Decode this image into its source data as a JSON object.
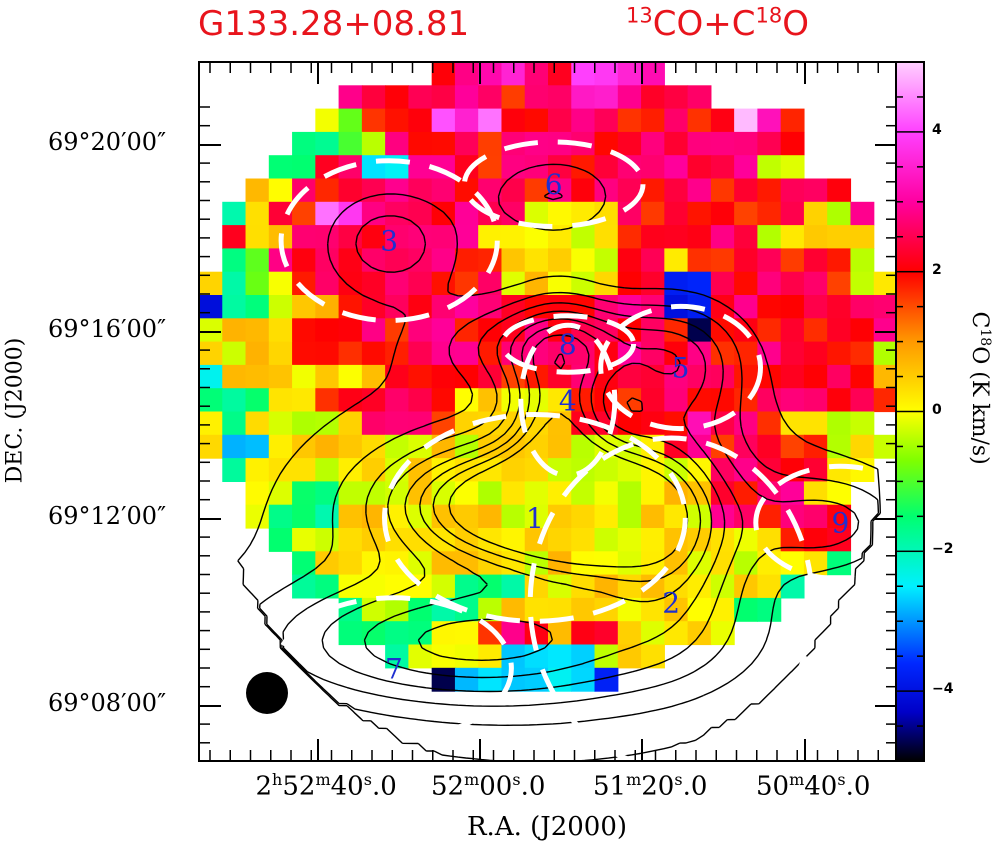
{
  "header": {
    "source_name": "G133.28+08.81",
    "iso1_mass": "13",
    "iso1_rest": "CO+C",
    "iso2_mass": "18",
    "iso2_rest": "O"
  },
  "chart_data": {
    "type": "heatmap",
    "title": "G133.28+08.81",
    "xlabel": "R.A. (J2000)",
    "ylabel": "DEC. (J2000)",
    "colorbar_label": {
      "mol": "C",
      "mass": "18",
      "rest": "O (K km/s)"
    },
    "colorbar_range": [
      -5,
      5
    ],
    "colorbar_ticks": [
      {
        "value": 4,
        "label": "4"
      },
      {
        "value": 2,
        "label": "2"
      },
      {
        "value": 0,
        "label": "0"
      },
      {
        "value": -2,
        "label": "−2"
      },
      {
        "value": -4,
        "label": "−4"
      }
    ],
    "colormap": [
      [
        -5,
        "#000000"
      ],
      [
        -4.3,
        "#0000c8"
      ],
      [
        -3.6,
        "#0028ff"
      ],
      [
        -2.5,
        "#00f0ff"
      ],
      [
        -1.5,
        "#00ff70"
      ],
      [
        -0.7,
        "#7fff00"
      ],
      [
        0,
        "#ffff00"
      ],
      [
        1,
        "#ff9900"
      ],
      [
        2,
        "#ff0000"
      ],
      [
        3,
        "#ff00a0"
      ],
      [
        4,
        "#ff40ff"
      ],
      [
        5,
        "#ffd0ff"
      ]
    ],
    "x_ticks": [
      {
        "h": "2",
        "m": "52",
        "s": "40",
        "frac": "0"
      },
      {
        "h": "",
        "m": "52",
        "s": "00",
        "frac": "0"
      },
      {
        "h": "",
        "m": "51",
        "s": "20",
        "frac": "0"
      },
      {
        "h": "",
        "m": "50",
        "s": "40",
        "frac": "0"
      }
    ],
    "y_ticks": [
      "69°20′00″",
      "69°16′00″",
      "69°12′00″",
      "69°08′00″"
    ],
    "grid_cols": 30,
    "grid_rows": 30,
    "map_rows": [
      "..........HHMMHHmmMM..........",
      "......HHHHHHHHHHMMHHHH........",
      ".....ygHHHmMmHHHHHHHHHHpMH....",
      "....GGgyHHHHHHHHHHHHHHHHHH....",
      "...GGHHCCHHHHHHHHHHHHHHHyy....",
      "..yyHHHHHHHHHHHHHHHHHHHHHHHH..",
      ".GyHHmmHHHHHHHyyyyHHHHHHHHyyH.",
      ".HyyHHHHHHHHyyyyyyHHHHHHyyyyy.",
      ".GgHHHHHHHHHHyyyyyHHyHHHHHHHy.",
      "yGgyHHHHHHHHHyyyyyHHBBHHHHHHyy",
      "BGGyyyHHHHHHHHHHHHHHBBHHHHHHHH",
      "yyyyHHHHHHHHHHHHHHHHHkHHHHHHHH",
      "yyyyHHHHHHHHHHHHHHHHHHHHHHHHHy",
      "CyyyyyyyHHHHHHHHHHHHHHHHHHHHHy",
      "GGGyyHHHHHHyyyyyHHHHHHHHHHHHHH",
      "yGyyyyyHHHHyyyyyHHHHHMHHHyyyy.",
      "yCCyyyyyyyyyyyyyyyyyHHHHHHHyyy",
      ".GyyyyyyyyyyyyyyyyyyyyHHHHHyy.",
      "..yyGGyyyyyyyyyyyyyyyyHHHHyy..",
      "..yGGGyyyyyyyyyyyyyyyyHHHHHH..",
      "...GyyyyyyyyyyyyyyyyyyyyyHHH..",
      "....GyyyyyyyyyyyyyyyyyyyyyyG..",
      "....GGyyyyyGGGyyyyyyyyyyyG....",
      "......GyyGGGyyyyyyyyyyyGG.....",
      "......GGGGyyHHHyHHyyyyy.......",
      "........GyyyyCCCCyyy..........",
      "..........kCCCCCCB............",
      "..............................",
      "..............................",
      ".............................."
    ],
    "pixel_seed": 133,
    "pixel_noise_k": 1.1,
    "beam": "circle",
    "clumps": [
      {
        "id": "1",
        "ra_off": 0.3,
        "dec_off": -1.7,
        "ra_radius": 3.2,
        "dec_radius": 2.2
      },
      {
        "id": "2",
        "ra_off": -2.6,
        "dec_off": -3.5,
        "ra_radius": 3.0,
        "dec_radius": 3.5
      },
      {
        "id": "3",
        "ra_off": 3.4,
        "dec_off": 4.2,
        "ra_radius": 2.3,
        "dec_radius": 1.7
      },
      {
        "id": "4",
        "ra_off": -0.4,
        "dec_off": 0.8,
        "ra_radius": 1.0,
        "dec_radius": 1.6
      },
      {
        "id": "5",
        "ra_off": -2.8,
        "dec_off": 1.5,
        "ra_radius": 1.7,
        "dec_radius": 1.3
      },
      {
        "id": "6",
        "ra_off": -0.1,
        "dec_off": 5.4,
        "ra_radius": 1.9,
        "dec_radius": 0.9
      },
      {
        "id": "7",
        "ra_off": 3.3,
        "dec_off": -4.9,
        "ra_radius": 2.5,
        "dec_radius": 1.5
      },
      {
        "id": "8",
        "ra_off": -0.4,
        "dec_off": 2.0,
        "ra_radius": 1.4,
        "dec_radius": 0.6
      },
      {
        "id": "9",
        "ra_off": -6.2,
        "dec_off": -1.8,
        "ra_radius": 1.8,
        "dec_radius": 1.2
      }
    ],
    "integrated_intensity_peaks": [
      {
        "ra_off": 0.5,
        "dec_off": -1.4,
        "amp": 7.5,
        "ra_sigma": 1.7,
        "dec_sigma": 0.8
      },
      {
        "ra_off": -0.2,
        "dec_off": 0.6,
        "amp": 4.5,
        "ra_sigma": 0.7,
        "dec_sigma": 1.3
      },
      {
        "ra_off": -1.1,
        "dec_off": -1.6,
        "amp": 4.2,
        "ra_sigma": 1.1,
        "dec_sigma": 0.9
      },
      {
        "ra_off": -2.6,
        "dec_off": -2.0,
        "amp": 3.2,
        "ra_sigma": 1.0,
        "dec_sigma": 1.4
      },
      {
        "ra_off": 1.8,
        "dec_off": -4.4,
        "amp": 3.5,
        "ra_sigma": 3.2,
        "dec_sigma": 0.9
      },
      {
        "ra_off": -0.3,
        "dec_off": 2.0,
        "amp": 3.0,
        "ra_sigma": 1.6,
        "dec_sigma": 0.6
      },
      {
        "ra_off": -2.8,
        "dec_off": 1.5,
        "amp": 2.5,
        "ra_sigma": 0.9,
        "dec_sigma": 0.9
      },
      {
        "ra_off": 3.4,
        "dec_off": 4.2,
        "amp": 2.2,
        "ra_sigma": 1.0,
        "dec_sigma": 0.8
      },
      {
        "ra_off": -0.1,
        "dec_off": 5.2,
        "amp": 1.8,
        "ra_sigma": 1.0,
        "dec_sigma": 0.6
      },
      {
        "ra_off": -6.0,
        "dec_off": -1.8,
        "amp": 2.0,
        "ra_sigma": 1.2,
        "dec_sigma": 0.7
      },
      {
        "ra_off": 0.0,
        "dec_off": -2.5,
        "amp": 2.5,
        "ra_sigma": 5.0,
        "dec_sigma": 3.5
      }
    ],
    "integrated_intensity_levels": [
      1.2,
      2.0,
      2.8,
      3.6,
      4.4,
      5.2,
      6.0,
      7.0
    ]
  }
}
